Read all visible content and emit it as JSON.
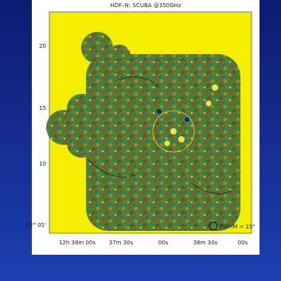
{
  "title": "HDF–N: SCUBA @350GHz",
  "y_tick_labels": [
    "20",
    "15",
    "10",
    "62° 05'"
  ],
  "x_tick_labels": [
    "12h 38m 00s",
    "37m 30s",
    "00s",
    "36m 30s",
    "00s"
  ],
  "annotation": "FWHM = 15\""
}
